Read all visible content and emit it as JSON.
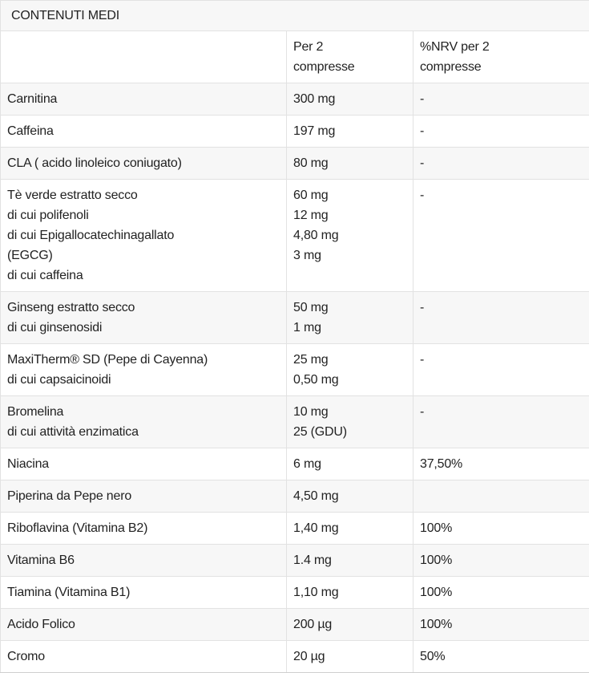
{
  "table": {
    "title": "CONTENUTI MEDI",
    "columns": [
      {
        "label_lines": [
          ""
        ]
      },
      {
        "label_lines": [
          "Per 2",
          "compresse"
        ]
      },
      {
        "label_lines": [
          "%NRV per 2",
          "compresse"
        ]
      }
    ],
    "rows": [
      {
        "name_lines": [
          "Carnitina"
        ],
        "amount_lines": [
          "300 mg"
        ],
        "nrv": "-"
      },
      {
        "name_lines": [
          "Caffeina"
        ],
        "amount_lines": [
          "197 mg"
        ],
        "nrv": "-"
      },
      {
        "name_lines": [
          "CLA ( acido linoleico coniugato)"
        ],
        "amount_lines": [
          "80 mg"
        ],
        "nrv": "-"
      },
      {
        "name_lines": [
          "Tè verde estratto secco",
          "di cui polifenoli",
          "di cui Epigallocatechinagallato",
          "(EGCG)",
          "di cui caffeina"
        ],
        "amount_lines": [
          "60 mg",
          "12 mg",
          "4,80 mg",
          "3 mg"
        ],
        "nrv": "-"
      },
      {
        "name_lines": [
          "Ginseng estratto secco",
          "di cui ginsenosidi"
        ],
        "amount_lines": [
          "50 mg",
          "1 mg"
        ],
        "nrv": "-"
      },
      {
        "name_lines": [
          "MaxiTherm® SD (Pepe di Cayenna)",
          "di cui capsaicinoidi"
        ],
        "amount_lines": [
          "25 mg",
          "0,50 mg"
        ],
        "nrv": "-"
      },
      {
        "name_lines": [
          "Bromelina",
          "di cui attività enzimatica"
        ],
        "amount_lines": [
          "10 mg",
          "25 (GDU)"
        ],
        "nrv": "-"
      },
      {
        "name_lines": [
          "Niacina"
        ],
        "amount_lines": [
          "6 mg"
        ],
        "nrv": "37,50%"
      },
      {
        "name_lines": [
          "Piperina da Pepe nero"
        ],
        "amount_lines": [
          "4,50 mg"
        ],
        "nrv": ""
      },
      {
        "name_lines": [
          "Riboflavina (Vitamina B2)"
        ],
        "amount_lines": [
          "1,40 mg"
        ],
        "nrv": "100%"
      },
      {
        "name_lines": [
          "Vitamina B6"
        ],
        "amount_lines": [
          "1.4 mg"
        ],
        "nrv": "100%"
      },
      {
        "name_lines": [
          "Tiamina (Vitamina B1)"
        ],
        "amount_lines": [
          "1,10 mg"
        ],
        "nrv": "100%"
      },
      {
        "name_lines": [
          "Acido Folico"
        ],
        "amount_lines": [
          "200 µg"
        ],
        "nrv": "100%"
      },
      {
        "name_lines": [
          "Cromo"
        ],
        "amount_lines": [
          "20 µg"
        ],
        "nrv": "50%"
      }
    ],
    "colors": {
      "stripe_bg": "#f7f7f7",
      "row_bg": "#ffffff",
      "border": "#e2e2e2",
      "text": "#222222"
    }
  }
}
